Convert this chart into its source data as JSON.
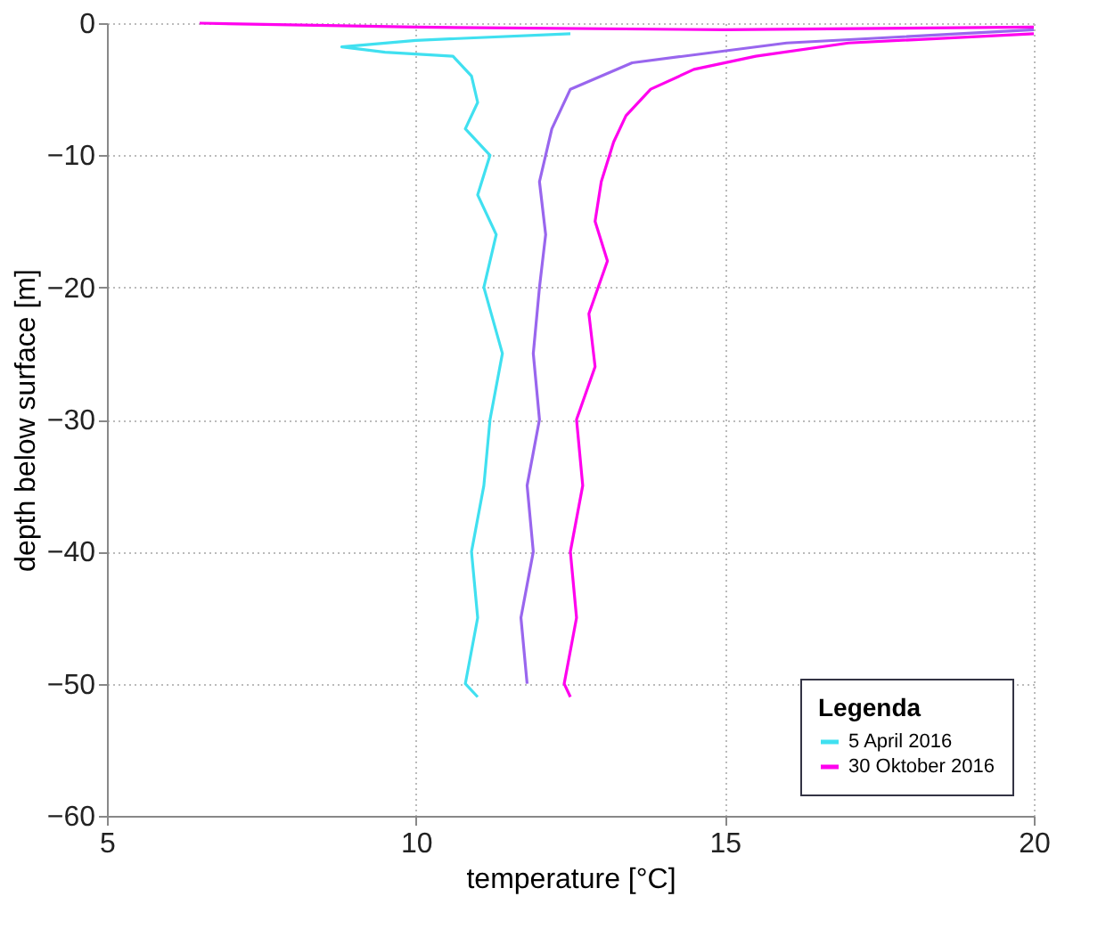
{
  "chart_data": {
    "type": "line",
    "xlabel": "temperature [°C]",
    "ylabel": "depth below surface [m]",
    "legend_title": "Legenda",
    "legend": "bottom right",
    "grid": true,
    "xlim": [
      5,
      20
    ],
    "xticks": [
      5,
      10,
      15,
      20
    ],
    "ylim": [
      -60,
      0
    ],
    "yticks": [
      0,
      -10,
      -20,
      -30,
      -40,
      -50,
      -60
    ],
    "series": [
      {
        "color": "#9966ee",
        "x": [
          20,
          16,
          13.5,
          12.5,
          12.2,
          12.0,
          12.1,
          12.0,
          11.9,
          12.0,
          11.8,
          11.9,
          11.7,
          11.8
        ],
        "values": [
          -0.5,
          -1.5,
          -3,
          -5,
          -8,
          -12,
          -16,
          -20,
          -25,
          -30,
          -35,
          -40,
          -45,
          -50
        ]
      },
      {
        "color": "#ff00ee",
        "x": [
          6.5,
          10,
          15,
          20
        ],
        "values": [
          0,
          -0.3,
          -0.5,
          -0.3
        ]
      },
      {
        "name": "5 April 2016",
        "color": "#40e0f0",
        "x": [
          12.5,
          10,
          8.8,
          9.5,
          10.6,
          10.9,
          11.0,
          10.8,
          11.2,
          11.0,
          11.3,
          11.1,
          11.4,
          11.2,
          11.1,
          10.9,
          11.0,
          10.8,
          11.0
        ],
        "values": [
          -0.8,
          -1.3,
          -1.8,
          -2.2,
          -2.5,
          -4,
          -6,
          -8,
          -10,
          -13,
          -16,
          -20,
          -25,
          -30,
          -35,
          -40,
          -45,
          -50,
          -51
        ]
      },
      {
        "name": "30 Oktober 2016",
        "color": "#ff00ee",
        "x": [
          20,
          17,
          15.5,
          14.5,
          13.8,
          13.4,
          13.2,
          13.0,
          12.9,
          13.1,
          12.8,
          12.9,
          12.6,
          12.7,
          12.5,
          12.6,
          12.4,
          12.5
        ],
        "values": [
          -0.8,
          -1.5,
          -2.5,
          -3.5,
          -5,
          -7,
          -9,
          -12,
          -15,
          -18,
          -22,
          -26,
          -30,
          -35,
          -40,
          -45,
          -50,
          -51
        ]
      }
    ]
  }
}
